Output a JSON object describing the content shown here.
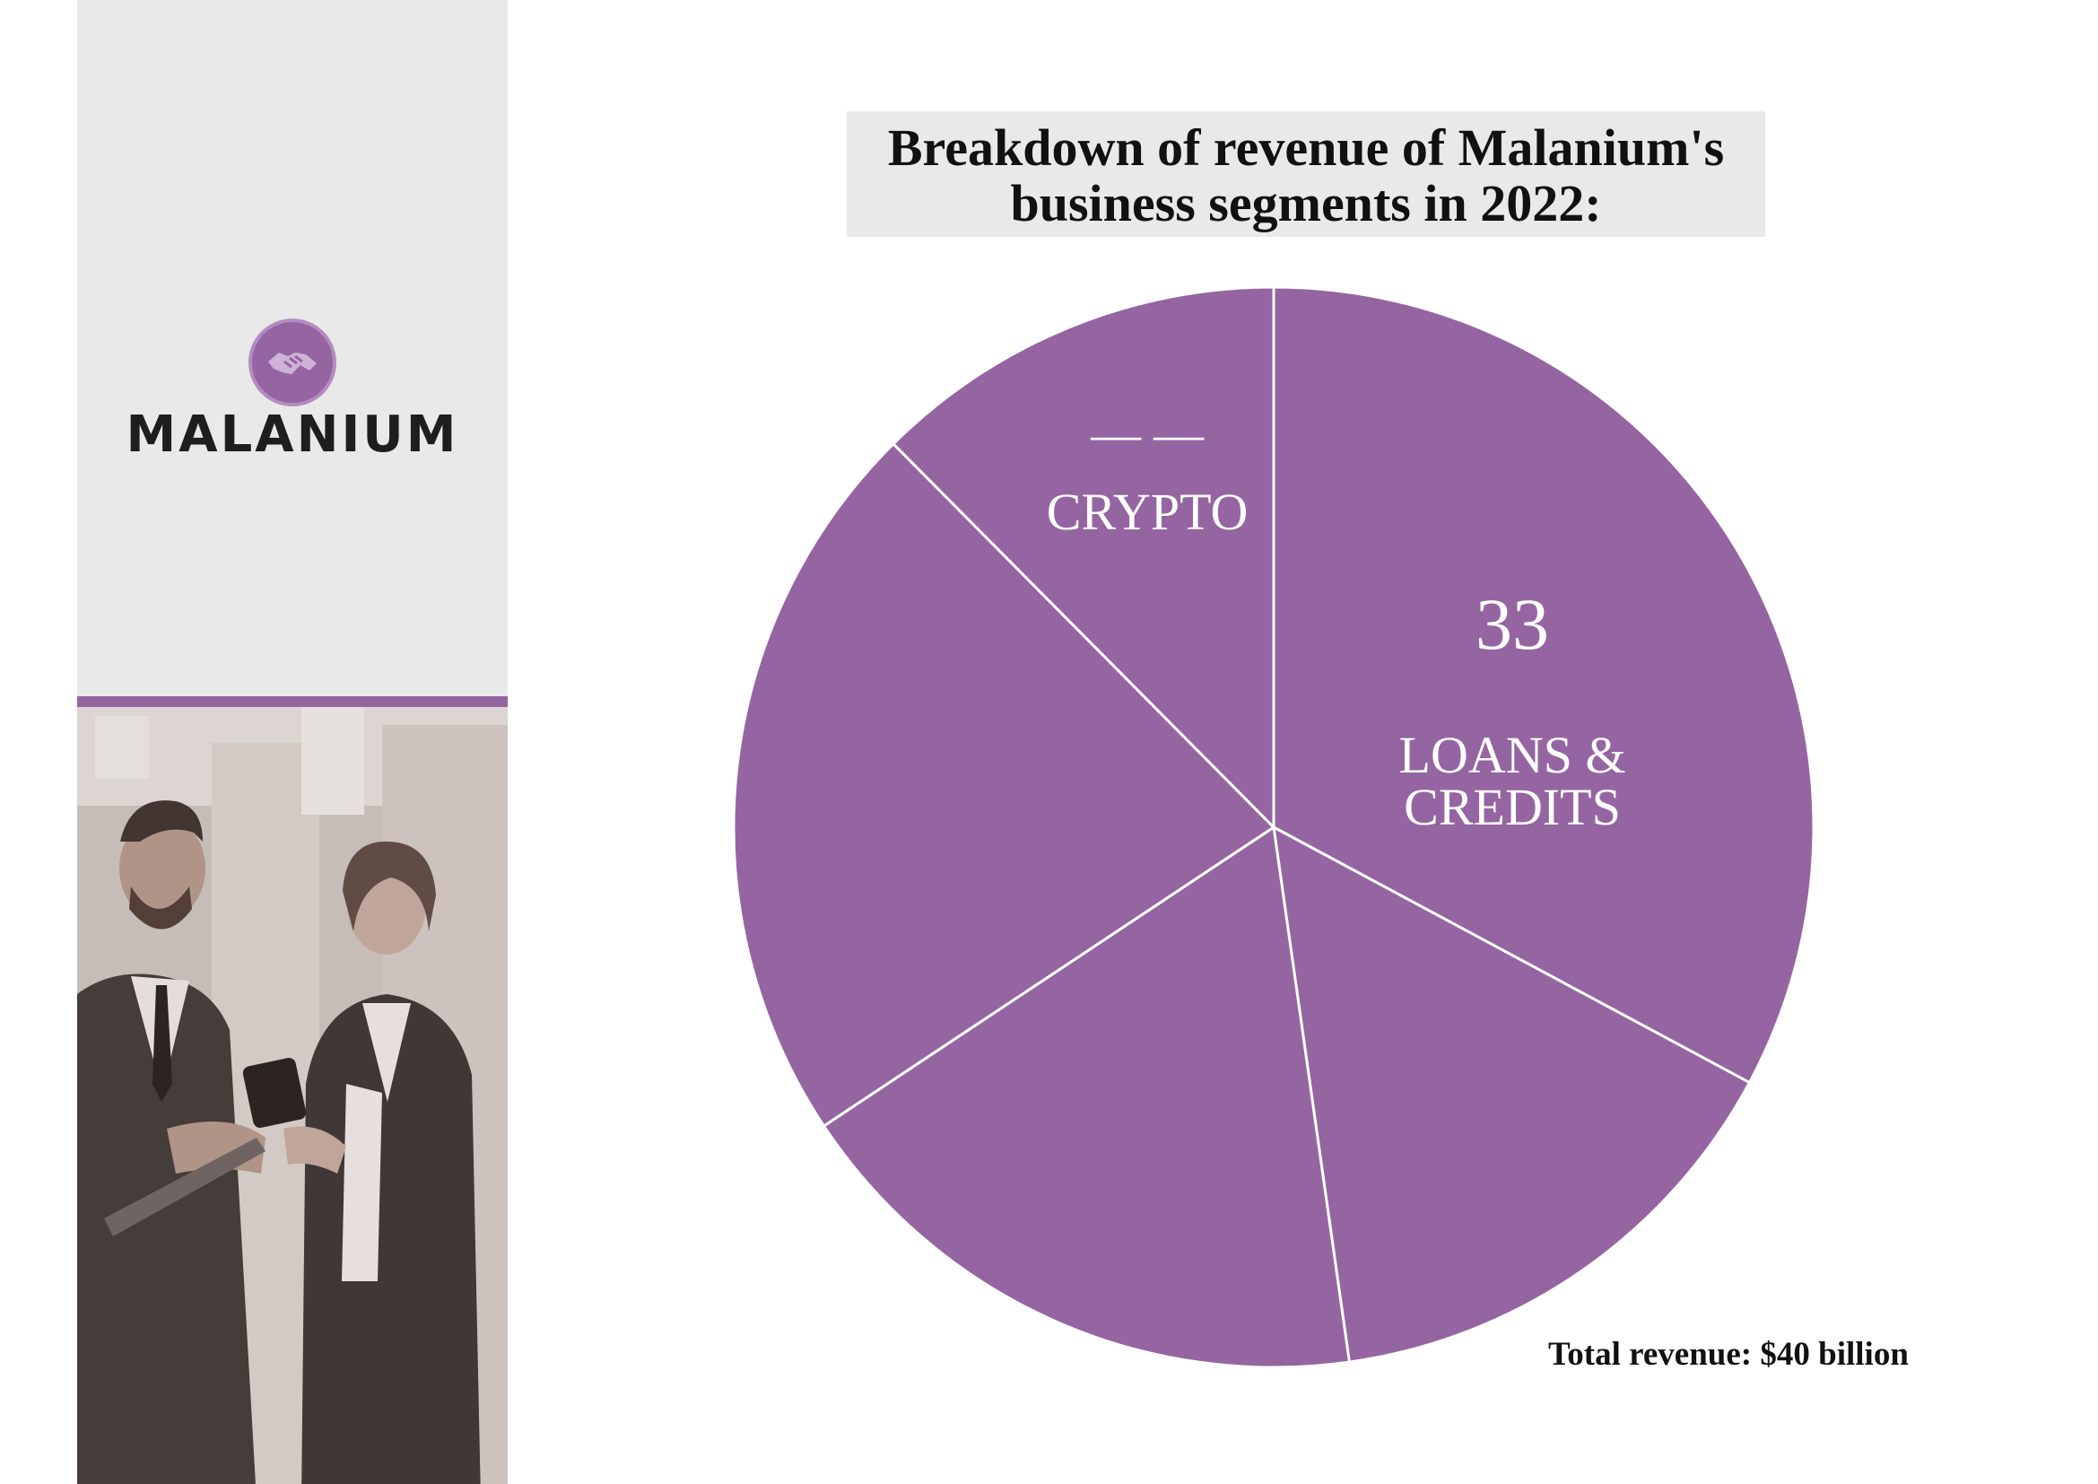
{
  "brand": {
    "name": "MALANIUM",
    "accent_color": "#9565a2"
  },
  "chart_data": {
    "type": "pie",
    "title_lines": [
      "Breakdown of revenue of Malanium's",
      "business segments in 2022:"
    ],
    "slices": [
      {
        "label": "LOANS & CREDITS",
        "label_lines": [
          "LOANS &",
          "CREDITS"
        ],
        "value_label": "33",
        "value": 33
      },
      {
        "label": "",
        "value": 15
      },
      {
        "label": "",
        "value": 18
      },
      {
        "label": "",
        "value": 22
      },
      {
        "label": "CRYPTO",
        "value_label": "— —",
        "value": 12.5
      }
    ],
    "slice_color": "#9565a2",
    "separator_color": "#ffffff",
    "label_color": "#ffffff",
    "footnote": "Total revenue: $40 billion"
  }
}
